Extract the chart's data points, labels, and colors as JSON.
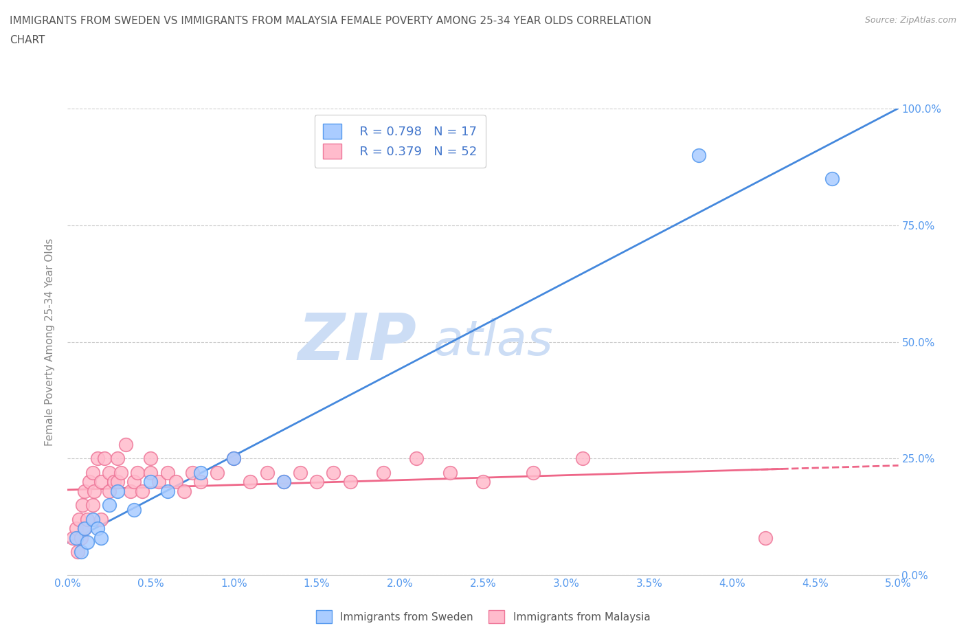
{
  "title_line1": "IMMIGRANTS FROM SWEDEN VS IMMIGRANTS FROM MALAYSIA FEMALE POVERTY AMONG 25-34 YEAR OLDS CORRELATION",
  "title_line2": "CHART",
  "source_text": "Source: ZipAtlas.com",
  "ylabel": "Female Poverty Among 25-34 Year Olds",
  "xlim": [
    0.0,
    5.0
  ],
  "ylim": [
    0.0,
    100.0
  ],
  "xticks": [
    0.0,
    0.5,
    1.0,
    1.5,
    2.0,
    2.5,
    3.0,
    3.5,
    4.0,
    4.5,
    5.0
  ],
  "yticks": [
    0.0,
    25.0,
    50.0,
    75.0,
    100.0
  ],
  "sweden_fill_color": "#aaccff",
  "sweden_edge_color": "#5599ee",
  "malaysia_fill_color": "#ffbbcc",
  "malaysia_edge_color": "#ee7799",
  "sweden_line_color": "#4488dd",
  "malaysia_line_color": "#ee6688",
  "background_color": "#ffffff",
  "grid_color": "#cccccc",
  "watermark_color": "#ccddf5",
  "legend_R_sweden": "R = 0.798",
  "legend_N_sweden": "N = 17",
  "legend_R_malaysia": "R = 0.379",
  "legend_N_malaysia": "N = 52",
  "tick_label_color": "#5599ee",
  "axis_label_color": "#888888",
  "sweden_scatter_x": [
    0.05,
    0.08,
    0.1,
    0.12,
    0.15,
    0.18,
    0.2,
    0.25,
    0.3,
    0.4,
    0.5,
    0.6,
    0.8,
    1.0,
    1.3,
    3.8,
    4.6
  ],
  "sweden_scatter_y": [
    8,
    5,
    10,
    7,
    12,
    10,
    8,
    15,
    18,
    14,
    20,
    18,
    22,
    25,
    20,
    90,
    85
  ],
  "malaysia_scatter_x": [
    0.03,
    0.05,
    0.06,
    0.07,
    0.08,
    0.09,
    0.1,
    0.1,
    0.12,
    0.13,
    0.15,
    0.15,
    0.16,
    0.18,
    0.2,
    0.2,
    0.22,
    0.25,
    0.25,
    0.28,
    0.3,
    0.3,
    0.32,
    0.35,
    0.38,
    0.4,
    0.42,
    0.45,
    0.5,
    0.5,
    0.55,
    0.6,
    0.65,
    0.7,
    0.75,
    0.8,
    0.9,
    1.0,
    1.1,
    1.2,
    1.3,
    1.4,
    1.5,
    1.6,
    1.7,
    1.9,
    2.1,
    2.3,
    2.5,
    2.8,
    3.1,
    4.2
  ],
  "malaysia_scatter_y": [
    8,
    10,
    5,
    12,
    8,
    15,
    10,
    18,
    12,
    20,
    15,
    22,
    18,
    25,
    12,
    20,
    25,
    18,
    22,
    20,
    25,
    20,
    22,
    28,
    18,
    20,
    22,
    18,
    22,
    25,
    20,
    22,
    20,
    18,
    22,
    20,
    22,
    25,
    20,
    22,
    20,
    22,
    20,
    22,
    20,
    22,
    25,
    22,
    20,
    22,
    25,
    8
  ]
}
